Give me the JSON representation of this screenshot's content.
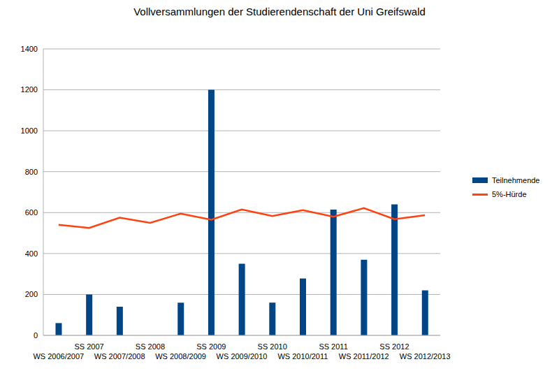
{
  "chart_data": {
    "type": "bar",
    "title": "Vollversammlungen der Studierendenschaft der Uni Greifswald",
    "categories": [
      "WS 2006/2007",
      "SS 2007",
      "WS 2007/2008",
      "SS 2008",
      "WS 2008/2009",
      "SS 2009",
      "WS 2009/2010",
      "SS 2010",
      "WS 2010/2011",
      "SS 2011",
      "WS 2011/2012",
      "SS 2012",
      "WS 2012/2013"
    ],
    "series": [
      {
        "name": "Teilnehmende",
        "type": "bar",
        "color": "#004586",
        "values": [
          60,
          200,
          140,
          null,
          160,
          1200,
          350,
          160,
          278,
          615,
          370,
          640,
          220
        ]
      },
      {
        "name": "5%-Hürde",
        "type": "line",
        "color": "#ff420e",
        "values": [
          540,
          525,
          575,
          550,
          595,
          565,
          615,
          583,
          612,
          580,
          622,
          568,
          587
        ]
      }
    ],
    "ylim": [
      0,
      1400
    ],
    "yticks": [
      0,
      200,
      400,
      600,
      800,
      1000,
      1200,
      1400
    ],
    "grid": true,
    "legend": "right"
  }
}
